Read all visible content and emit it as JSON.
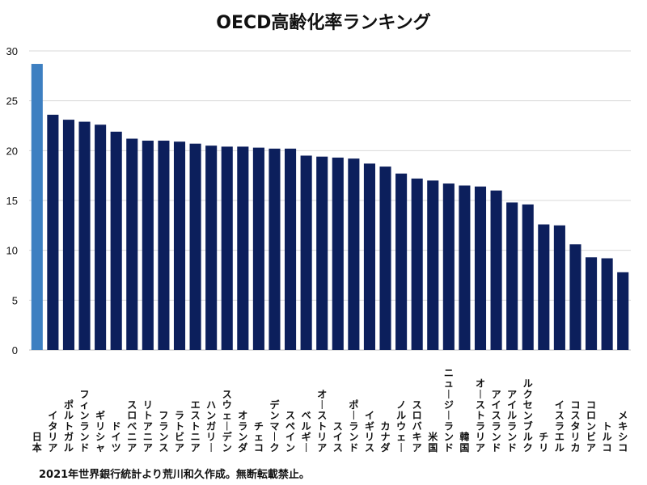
{
  "page": {
    "title": "OECD高齢化率ランキング",
    "source": "2021年世界銀行統計より荒川和久作成。無断転載禁止。"
  },
  "colors": {
    "highlight": "#3d7fc1",
    "bar": "#0c1f5c",
    "grid": "#d9d9d9"
  },
  "chart_data": {
    "type": "bar",
    "title": "OECD高齢化率ランキング",
    "xlabel": "",
    "ylabel": "",
    "ylim": [
      0,
      30
    ],
    "yticks": [
      0,
      5,
      10,
      15,
      20,
      25,
      30
    ],
    "grid": true,
    "highlight_index": 0,
    "categories": [
      "日本",
      "イタリア",
      "ポルトガル",
      "フィンランド",
      "ギリシャ",
      "ドイツ",
      "スロベニア",
      "リトアニア",
      "フランス",
      "ラトビア",
      "エストニア",
      "ハンガリー",
      "スウェーデン",
      "オランダ",
      "チェコ",
      "デンマーク",
      "スペイン",
      "ベルギー",
      "オーストリア",
      "スイス",
      "ポーランド",
      "イギリス",
      "カナダ",
      "ノルウェー",
      "スロバキア",
      "米国",
      "ニュージーランド",
      "韓国",
      "オーストラリア",
      "アイスランド",
      "アイルランド",
      "ルクセンブルク",
      "チリ",
      "イスラエル",
      "コスタリカ",
      "コロンビア",
      "トルコ",
      "メキシコ"
    ],
    "values": [
      28.7,
      23.6,
      23.1,
      22.9,
      22.6,
      21.9,
      21.2,
      21.0,
      21.0,
      20.9,
      20.7,
      20.5,
      20.4,
      20.4,
      20.3,
      20.2,
      20.2,
      19.5,
      19.4,
      19.3,
      19.2,
      18.7,
      18.4,
      17.7,
      17.2,
      17.0,
      16.7,
      16.5,
      16.4,
      16.0,
      14.8,
      14.6,
      12.6,
      12.5,
      10.6,
      9.3,
      9.2,
      7.8
    ]
  }
}
